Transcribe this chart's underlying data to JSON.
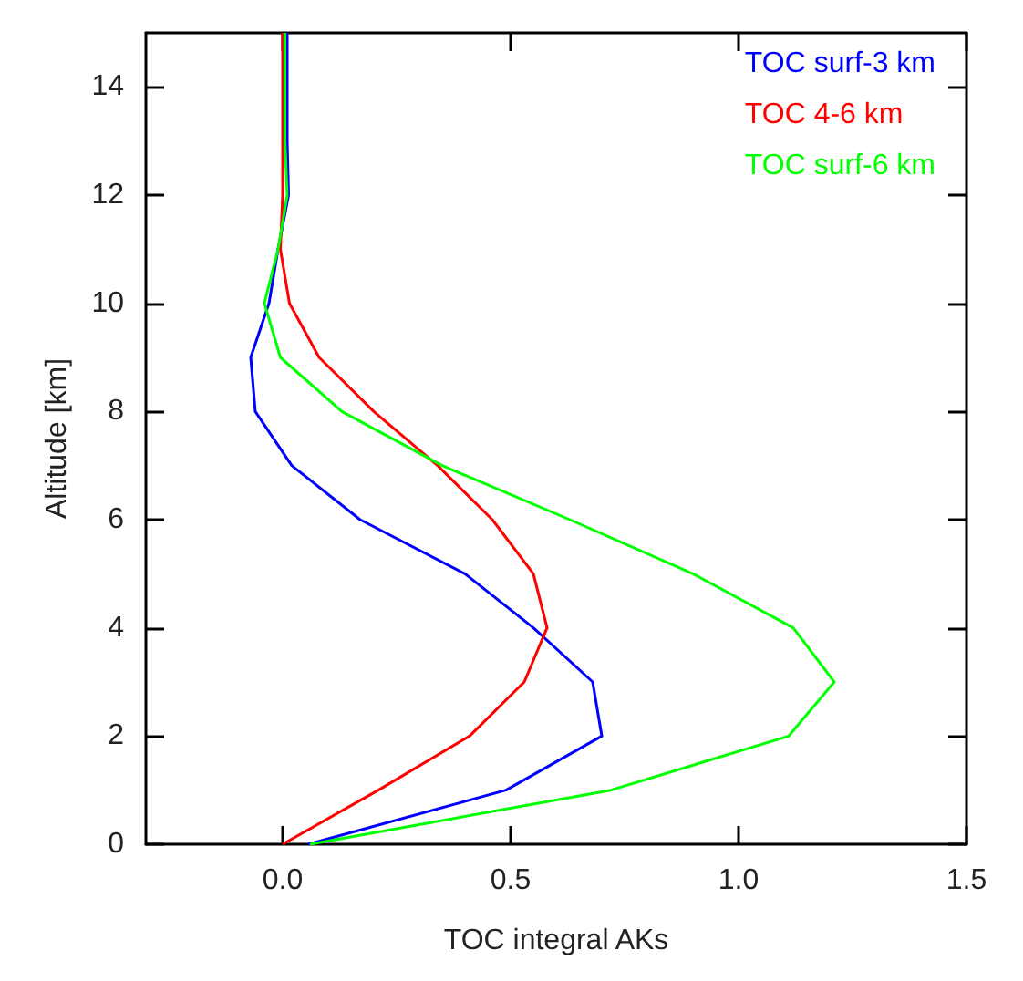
{
  "chart_data": {
    "type": "line",
    "xlabel": "TOC integral AKs",
    "ylabel": "Altitude [km]",
    "orientation": "horizontal",
    "x": [
      0,
      1,
      2,
      3,
      4,
      5,
      6,
      7,
      8,
      9,
      10,
      11,
      12,
      13,
      14,
      15
    ],
    "series": [
      {
        "name": "TOC surf-3 km",
        "color": "#0000ff",
        "values": [
          0.056,
          0.49,
          0.7,
          0.68,
          0.55,
          0.4,
          0.17,
          0.02,
          -0.06,
          -0.07,
          -0.03,
          -0.01,
          0.013,
          0.01,
          0.01,
          0.01
        ]
      },
      {
        "name": "TOC 4-6 km",
        "color": "#ff0000",
        "values": [
          0.0,
          0.21,
          0.41,
          0.53,
          0.58,
          0.55,
          0.46,
          0.34,
          0.2,
          0.08,
          0.015,
          -0.005,
          0.0,
          0.0,
          0.0,
          0.0
        ]
      },
      {
        "name": "TOC surf-6 km",
        "color": "#00ff00",
        "values": [
          0.06,
          0.72,
          1.11,
          1.21,
          1.12,
          0.9,
          0.63,
          0.35,
          0.13,
          -0.005,
          -0.04,
          -0.01,
          0.01,
          0.005,
          0.005,
          0.005
        ]
      }
    ],
    "xlim": [
      -0.3,
      1.5
    ],
    "xticks": [
      {
        "value": 0,
        "label": "0.0"
      },
      0.5,
      {
        "value": 1,
        "label": "1.0"
      },
      1.5
    ],
    "ylim": [
      0,
      15
    ],
    "yticks": [
      0,
      2,
      4,
      6,
      8,
      10,
      12,
      14
    ],
    "grid": false,
    "legend": "top right",
    "marker": "none",
    "line_style": "solid"
  }
}
